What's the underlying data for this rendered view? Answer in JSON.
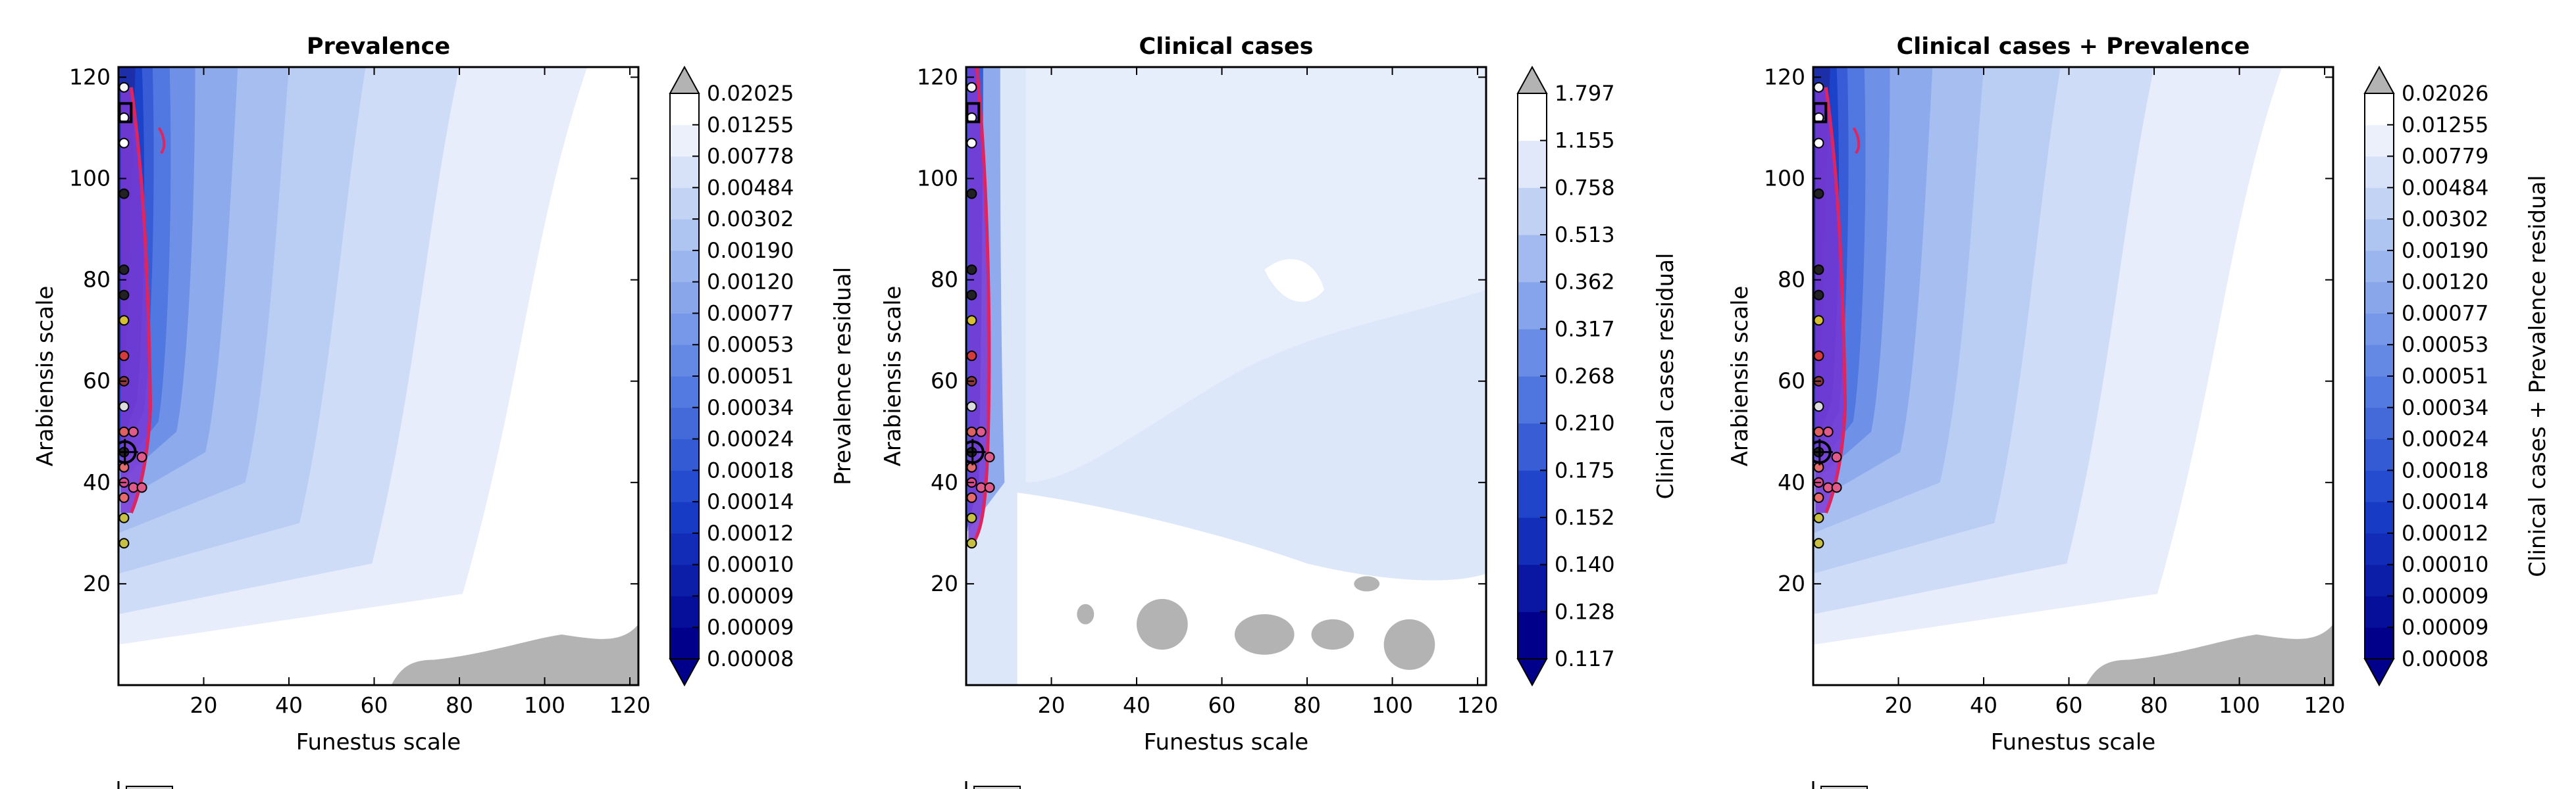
{
  "chart_data": [
    {
      "type": "heatmap",
      "title": "Prevalence",
      "xlabel": "Funestus scale",
      "ylabel": "Arabiensis scale",
      "xlim": [
        0,
        122
      ],
      "ylim": [
        0,
        122
      ],
      "xticks": [
        20,
        40,
        60,
        80,
        100,
        120
      ],
      "yticks": [
        20,
        40,
        60,
        80,
        100,
        120
      ],
      "colorbar": {
        "label": "Prevalence residual",
        "ticks": [
          "0.00008",
          "0.00009",
          "0.00009",
          "0.00010",
          "0.00012",
          "0.00014",
          "0.00018",
          "0.00024",
          "0.00034",
          "0.00051",
          "0.00053",
          "0.00077",
          "0.00120",
          "0.00190",
          "0.00302",
          "0.00484",
          "0.00778",
          "0.01255",
          "0.02025"
        ],
        "extend": "both",
        "over_color": "#b3b3b3",
        "under_color": "#00008b"
      },
      "over_region": "bottom-right",
      "contour_color": "#e0245e"
    },
    {
      "type": "heatmap",
      "title": "Clinical cases",
      "xlabel": "Funestus scale",
      "ylabel": "Arabiensis scale",
      "xlim": [
        0,
        122
      ],
      "ylim": [
        0,
        122
      ],
      "xticks": [
        20,
        40,
        60,
        80,
        100,
        120
      ],
      "yticks": [
        20,
        40,
        60,
        80,
        100,
        120
      ],
      "colorbar": {
        "label": "Clinical cases residual",
        "ticks": [
          "0.117",
          "0.128",
          "0.140",
          "0.152",
          "0.175",
          "0.210",
          "0.268",
          "0.317",
          "0.362",
          "0.513",
          "0.758",
          "1.155",
          "1.797"
        ],
        "extend": "both",
        "over_color": "#b3b3b3",
        "under_color": "#00008b"
      },
      "over_region": "bottom-patches",
      "contour_color": "#e0245e"
    },
    {
      "type": "heatmap",
      "title": "Clinical cases + Prevalence",
      "xlabel": "Funestus scale",
      "ylabel": "Arabiensis scale",
      "xlim": [
        0,
        122
      ],
      "ylim": [
        0,
        122
      ],
      "xticks": [
        20,
        40,
        60,
        80,
        100,
        120
      ],
      "yticks": [
        20,
        40,
        60,
        80,
        100,
        120
      ],
      "colorbar": {
        "label": "Clinical cases + Prevalence residual",
        "ticks": [
          "0.00008",
          "0.00009",
          "0.00009",
          "0.00010",
          "0.00012",
          "0.00014",
          "0.00018",
          "0.00024",
          "0.00034",
          "0.00051",
          "0.00053",
          "0.00077",
          "0.00120",
          "0.00190",
          "0.00302",
          "0.00484",
          "0.00779",
          "0.01255",
          "0.02026"
        ],
        "extend": "both",
        "over_color": "#b3b3b3",
        "under_color": "#00008b"
      },
      "over_region": "bottom-right",
      "contour_color": "#e0245e"
    }
  ],
  "markers": {
    "y": [
      118,
      112,
      107,
      97,
      82,
      77,
      72,
      65,
      60,
      55,
      50,
      46,
      43,
      40,
      37,
      33,
      28
    ],
    "colors": [
      "#f5f5f5",
      "#ffffff",
      "#ffffff",
      "#222222",
      "#222222",
      "#222222",
      "#d4c030",
      "#d63a3a",
      "#8a3a3a",
      "#dddddd",
      "#e06060",
      "#222222",
      "#e26b6b",
      "#d94a8a",
      "#e86a6a",
      "#c8c040",
      "#c8c040"
    ]
  },
  "colors": {
    "under": "#00008b",
    "over": "#b3b3b3",
    "low": "#ffffff",
    "mid": "#6c8fe8",
    "high": "#1a2ab0",
    "contour": "#e0245e",
    "purple": "#7a3ad6"
  }
}
